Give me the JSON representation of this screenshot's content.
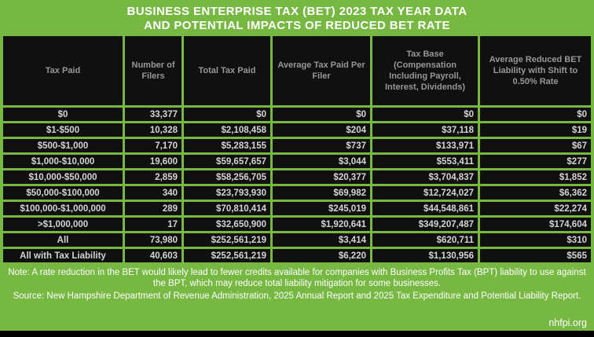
{
  "title": {
    "line1": "BUSINESS ENTERPRISE TAX (BET) 2023 TAX YEAR DATA",
    "line2": "AND POTENTIAL IMPACTS OF REDUCED BET RATE"
  },
  "colors": {
    "background_green": "#77b843",
    "cell_background": "#101010",
    "header_text": "#979797",
    "cell_text": "#d4d4d4",
    "title_text": "#ffffff",
    "bottom_bar": "#000000"
  },
  "chart_data": {
    "type": "table",
    "title": "BUSINESS ENTERPRISE TAX (BET) 2023 TAX YEAR DATA AND POTENTIAL IMPACTS OF REDUCED BET RATE",
    "columns": [
      "Tax Paid",
      "Number of Filers",
      "Total Tax Paid",
      "Average Tax Paid Per Filer",
      "Tax Base (Compensation Including Payroll, Interest, Dividends)",
      "Average Reduced BET Liability with Shift to 0.50% Rate"
    ],
    "rows": [
      [
        "$0",
        "33,377",
        "$0",
        "$0",
        "$0",
        "$0"
      ],
      [
        "$1-$500",
        "10,328",
        "$2,108,458",
        "$204",
        "$37,118",
        "$19"
      ],
      [
        "$500-$1,000",
        "7,170",
        "$5,283,155",
        "$737",
        "$133,971",
        "$67"
      ],
      [
        "$1,000-$10,000",
        "19,600",
        "$59,657,657",
        "$3,044",
        "$553,411",
        "$277"
      ],
      [
        "$10,000-$50,000",
        "2,859",
        "$58,256,705",
        "$20,377",
        "$3,704,837",
        "$1,852"
      ],
      [
        "$50,000-$100,000",
        "340",
        "$23,793,930",
        "$69,982",
        "$12,724,027",
        "$6,362"
      ],
      [
        "$100,000-$1,000,000",
        "289",
        "$70,810,414",
        "$245,019",
        "$44,548,861",
        "$22,274"
      ],
      [
        ">$1,000,000",
        "17",
        "$32,650,900",
        "$1,920,641",
        "$349,207,487",
        "$174,604"
      ],
      [
        "All",
        "73,980",
        "$252,561,219",
        "$3,414",
        "$620,711",
        "$310"
      ],
      [
        "All with Tax Liability",
        "40,603",
        "$252,561,219",
        "$6,220",
        "$1,130,956",
        "$565"
      ]
    ]
  },
  "footer": {
    "note": "Note: A rate reduction in the BET would likely lead to fewer credits available for companies with Business Profits Tax (BPT) liability to use against the BPT, which may reduce total liability mitigation for some businesses.",
    "source": "Source: New Hampshire Department of Revenue Administration, 2025 Annual Report and 2025 Tax Expenditure and Potential Liability Report.",
    "website": "nhfpi.org"
  }
}
